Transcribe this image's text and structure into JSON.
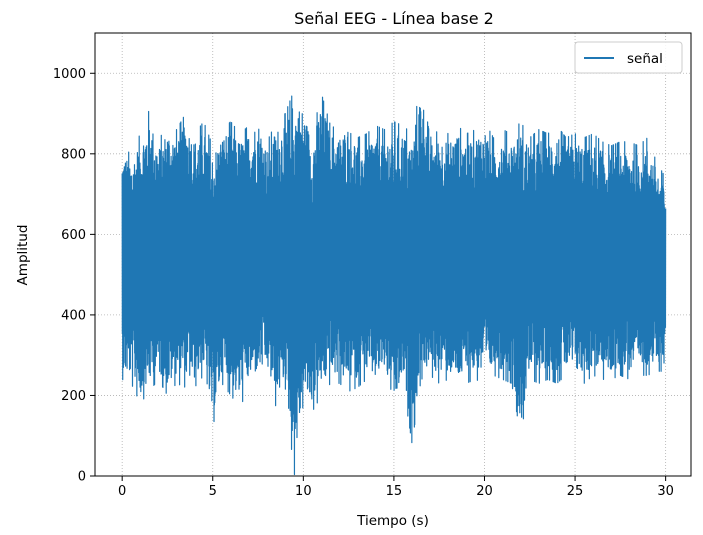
{
  "chart_data": {
    "type": "line",
    "title": "Señal EEG - Línea base 2",
    "xlabel": "Tiempo (s)",
    "ylabel": "Amplitud",
    "xlim": [
      -1.5,
      31.4
    ],
    "ylim": [
      0,
      1100
    ],
    "xticks": [
      0,
      5,
      10,
      15,
      20,
      25,
      30
    ],
    "xtick_labels": [
      "0",
      "5",
      "10",
      "15",
      "20",
      "25",
      "30"
    ],
    "yticks": [
      0,
      200,
      400,
      600,
      800,
      1000
    ],
    "ytick_labels": [
      "0",
      "200",
      "400",
      "600",
      "800",
      "1000"
    ],
    "grid": true,
    "legend_position": "top-right",
    "series": [
      {
        "name": "señal",
        "color": "#1f77b4",
        "x": [
          0,
          0.5,
          1,
          1.5,
          2,
          2.5,
          3,
          3.5,
          4,
          4.5,
          5,
          5.5,
          6,
          6.5,
          7,
          7.5,
          8,
          8.5,
          9,
          9.5,
          10,
          10.5,
          11,
          11.5,
          12,
          12.5,
          13,
          13.5,
          14,
          14.5,
          15,
          15.5,
          16,
          16.5,
          17,
          17.5,
          18,
          18.5,
          19,
          19.5,
          20,
          20.5,
          21,
          21.5,
          22,
          22.5,
          23,
          23.5,
          24,
          24.5,
          25,
          25.5,
          26,
          26.5,
          27,
          27.5,
          28,
          28.5,
          29,
          29.5,
          30
        ],
        "max": [
          815,
          800,
          850,
          910,
          830,
          880,
          860,
          900,
          850,
          880,
          820,
          860,
          880,
          850,
          870,
          900,
          830,
          880,
          900,
          960,
          930,
          850,
          950,
          870,
          860,
          890,
          840,
          850,
          870,
          860,
          880,
          870,
          850,
          980,
          840,
          860,
          850,
          870,
          850,
          860,
          880,
          840,
          860,
          850,
          880,
          840,
          860,
          850,
          870,
          840,
          850,
          840,
          850,
          830,
          820,
          830,
          830,
          820,
          840,
          780,
          740
        ],
        "min": [
          240,
          230,
          180,
          210,
          240,
          200,
          230,
          220,
          220,
          250,
          120,
          230,
          200,
          170,
          220,
          240,
          250,
          170,
          220,
          0,
          180,
          160,
          200,
          230,
          230,
          210,
          220,
          240,
          220,
          250,
          150,
          230,
          80,
          240,
          250,
          230,
          240,
          220,
          230,
          240,
          230,
          250,
          240,
          230,
          100,
          240,
          230,
          240,
          230,
          250,
          240,
          230,
          250,
          240,
          240,
          250,
          240,
          250,
          250,
          260,
          260
        ]
      }
    ]
  }
}
